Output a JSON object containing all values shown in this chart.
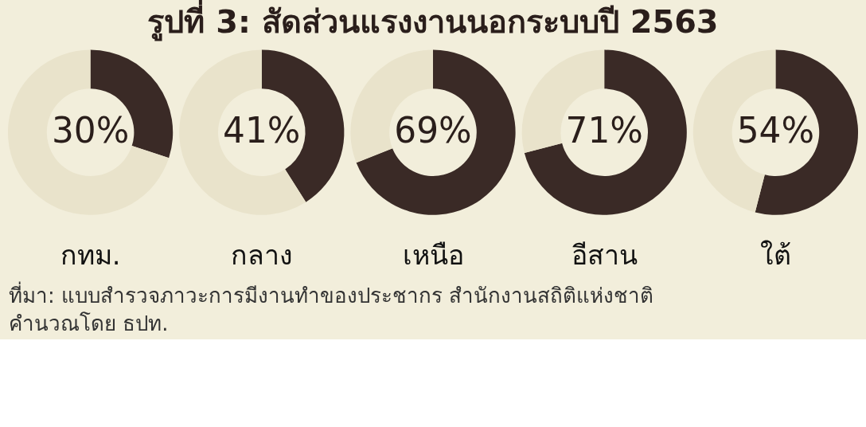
{
  "chart_data": [
    {
      "type": "donut",
      "xlabel": "กทม.",
      "categories": [
        null,
        null
      ],
      "values": [
        30,
        70
      ],
      "colors": [
        "#3a2a26",
        "#e9e3cb"
      ],
      "value_labels": [
        "30%",
        null
      ]
    },
    {
      "type": "donut",
      "xlabel": "กลาง",
      "categories": [
        null,
        null
      ],
      "values": [
        41,
        59
      ],
      "colors": [
        "#3a2a26",
        "#e9e3cb"
      ],
      "value_labels": [
        "41%",
        null
      ]
    },
    {
      "type": "donut",
      "xlabel": "เหนือ",
      "categories": [
        null,
        null
      ],
      "values": [
        69,
        31
      ],
      "colors": [
        "#3a2a26",
        "#e9e3cb"
      ],
      "value_labels": [
        "69%",
        null
      ]
    },
    {
      "type": "donut",
      "xlabel": "อีสาน",
      "categories": [
        null,
        null
      ],
      "values": [
        71,
        29
      ],
      "colors": [
        "#3a2a26",
        "#e9e3cb"
      ],
      "value_labels": [
        "71%",
        null
      ]
    },
    {
      "type": "donut",
      "xlabel": "ใต้",
      "categories": [
        null,
        null
      ],
      "values": [
        54,
        46
      ],
      "colors": [
        "#3a2a26",
        "#e9e3cb"
      ],
      "value_labels": [
        "54%",
        null
      ]
    },
    {
      "type": "other",
      "title": "รูปที่ 3: สัดส่วนแรงงานนอกระบบปี 2563",
      "annotations": [
        "ที่มา: แบบสำรวจภาวะการมีงานทำของประชากร สำนักงานสถิติแห่งชาติ",
        "คำนวณโดย ธปท."
      ]
    }
  ]
}
